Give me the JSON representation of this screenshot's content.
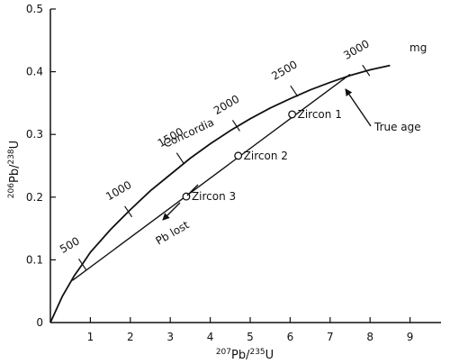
{
  "chart_data": {
    "type": "line",
    "xlim": [
      0,
      10
    ],
    "ylim": [
      0,
      0.5
    ],
    "x_ticks": [
      "1",
      "2",
      "3",
      "4",
      "5",
      "6",
      "7",
      "8",
      "9"
    ],
    "y_ticks": [
      "0",
      "0.1",
      "0.2",
      "0.3",
      "0.4",
      "0.5"
    ],
    "xlabel": {
      "iso": "207",
      "elem": "Pb/",
      "iso2": "235",
      "elem2": "U"
    },
    "ylabel": {
      "iso": "206",
      "elem": "Pb/",
      "iso2": "238",
      "elem2": "U"
    },
    "concordia": {
      "name": "Concordia",
      "unit_label": "mg",
      "points": [
        [
          0,
          0
        ],
        [
          0.3,
          0.042
        ],
        [
          0.6,
          0.075
        ],
        [
          0.8,
          0.093
        ],
        [
          1.0,
          0.112
        ],
        [
          1.5,
          0.148
        ],
        [
          2.0,
          0.18
        ],
        [
          2.5,
          0.21
        ],
        [
          3.0,
          0.236
        ],
        [
          3.5,
          0.262
        ],
        [
          4.0,
          0.285
        ],
        [
          4.5,
          0.306
        ],
        [
          5.0,
          0.325
        ],
        [
          5.5,
          0.342
        ],
        [
          6.0,
          0.357
        ],
        [
          6.5,
          0.371
        ],
        [
          7.0,
          0.383
        ],
        [
          7.5,
          0.394
        ],
        [
          8.0,
          0.403
        ],
        [
          8.5,
          0.41
        ]
      ],
      "age_marks": [
        {
          "label": "500",
          "x": 0.8,
          "y": 0.093
        },
        {
          "label": "1000",
          "x": 1.95,
          "y": 0.177
        },
        {
          "label": "1500",
          "x": 3.25,
          "y": 0.262
        },
        {
          "label": "2000",
          "x": 4.65,
          "y": 0.314
        },
        {
          "label": "2500",
          "x": 6.1,
          "y": 0.369
        },
        {
          "label": "3000",
          "x": 7.9,
          "y": 0.402
        }
      ]
    },
    "discordia": {
      "points": [
        [
          0.55,
          0.067
        ],
        [
          7.5,
          0.396
        ]
      ],
      "zircons": [
        {
          "name": "Zircon 1",
          "x": 6.05,
          "y": 0.332
        },
        {
          "name": "Zircon 2",
          "x": 4.7,
          "y": 0.266
        },
        {
          "name": "Zircon 3",
          "x": 3.4,
          "y": 0.201
        }
      ]
    },
    "annotations": {
      "true_age": "True age",
      "pb_lost": "Pb lost"
    }
  }
}
